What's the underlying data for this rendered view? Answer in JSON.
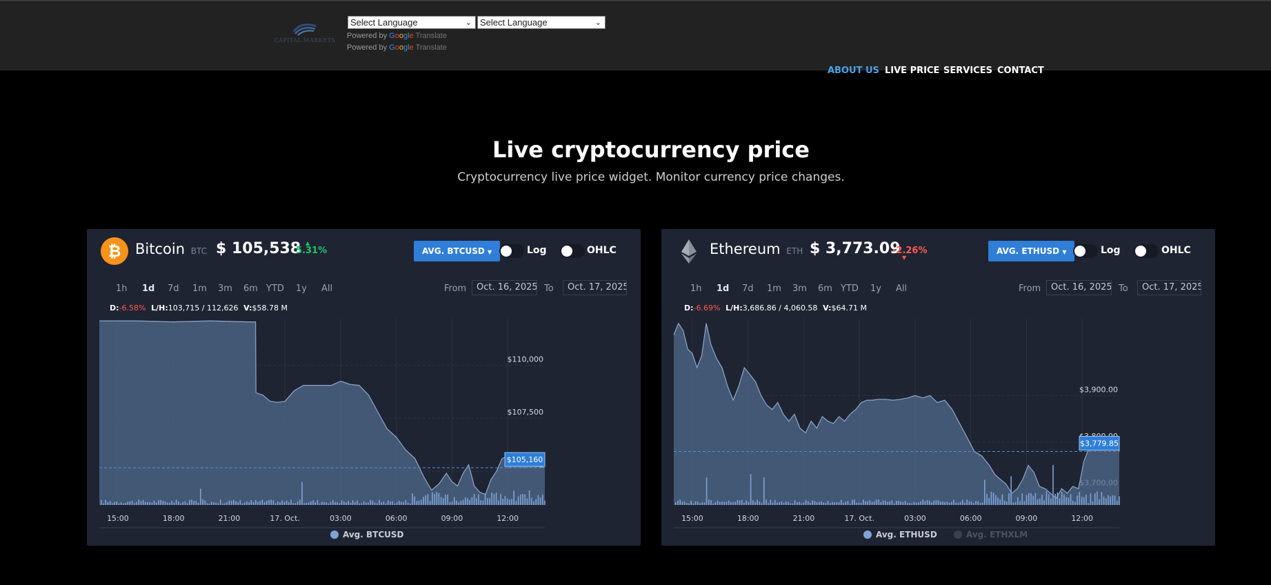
{
  "header": {
    "language_selects": [
      "Select Language",
      "Select Language"
    ],
    "powered_by": "Powered by",
    "powered_brand": [
      "G",
      "o",
      "o",
      "g",
      "l",
      "e"
    ],
    "powered_translate": "Translate",
    "logo_text": "CAPITAL MARKETS"
  },
  "nav": {
    "items": [
      {
        "label": "ABOUT US",
        "active": true
      },
      {
        "label": "LIVE PRICE",
        "active": false
      },
      {
        "label": "SERVICES",
        "active": false
      },
      {
        "label": "CONTACT",
        "active": false
      }
    ],
    "active_color": "#4aa3e8"
  },
  "hero": {
    "title": "Live cryptocurrency price",
    "subtitle": "Cryptocurrency live price widget. Monitor currency price changes."
  },
  "widgets": [
    {
      "name": "Bitcoin",
      "symbol": "BTC",
      "price": "$ 105,538",
      "change": "5.31%",
      "change_direction": "up",
      "avg_button": "AVG. BTCUSD",
      "toggles": [
        "Log",
        "OHLC"
      ],
      "ranges": [
        "1h",
        "1d",
        "7d",
        "1m",
        "3m",
        "6m",
        "YTD",
        "1y",
        "All"
      ],
      "active_range": "1d",
      "from_label": "From",
      "from_date": "Oct. 16, 2025",
      "to_label": "To",
      "to_date": "Oct. 17, 2025",
      "stats": {
        "d_label": "D:",
        "d_value": "-6.58%",
        "lh_label": "L/H:",
        "lh_value": "103,715 / 112,626",
        "v_label": "V:",
        "v_value": "$58.78 M"
      },
      "legend": [
        {
          "label": "Avg. BTCUSD",
          "enabled": true
        }
      ],
      "current_label": "$105,160"
    },
    {
      "name": "Ethereum",
      "symbol": "ETH",
      "price": "$ 3,773.09",
      "change": "-2.26%",
      "change_direction": "down",
      "avg_button": "AVG. ETHUSD",
      "toggles": [
        "Log",
        "OHLC"
      ],
      "ranges": [
        "1h",
        "1d",
        "7d",
        "1m",
        "3m",
        "6m",
        "YTD",
        "1y",
        "All"
      ],
      "active_range": "1d",
      "from_label": "From",
      "from_date": "Oct. 16, 2025",
      "to_label": "To",
      "to_date": "Oct. 17, 2025",
      "stats": {
        "d_label": "D:",
        "d_value": "-6.69%",
        "lh_label": "L/H:",
        "lh_value": "3,686.86 / 4,060.58",
        "v_label": "V:",
        "v_value": "$64.71 M"
      },
      "legend": [
        {
          "label": "Avg. ETHUSD",
          "enabled": true
        },
        {
          "label": "Avg. ETHXLM",
          "enabled": false
        }
      ],
      "current_label": "$3,779.85"
    }
  ],
  "chart_data": [
    {
      "type": "area",
      "title": "",
      "series": [
        {
          "name": "Avg. BTCUSD"
        }
      ],
      "x_ticks": [
        "15:00",
        "18:00",
        "21:00",
        "17. Oct.",
        "03:00",
        "06:00",
        "09:00",
        "12:00"
      ],
      "y_ticks": [
        105000,
        107500,
        110000
      ],
      "y_tick_labels": [
        "$105,000",
        "$107,500",
        "$110,000"
      ],
      "ylim": [
        103400,
        112200
      ],
      "current_value": 105160,
      "t": [
        0,
        2,
        4,
        6,
        8,
        8.42,
        8.44,
        8.8,
        9.2,
        9.6,
        10,
        10.5,
        11,
        11.5,
        12,
        12.5,
        13,
        13.5,
        14,
        14.5,
        15,
        15.5,
        16,
        16.5,
        17,
        17.5,
        17.9,
        18.3,
        18.7,
        19,
        19.3,
        19.6,
        19.9,
        20.2,
        20.5,
        20.8,
        21.1,
        21.4,
        21.7,
        22,
        22.3,
        22.6,
        22.9,
        23.2,
        23.5,
        23.8,
        24
      ],
      "values": [
        112100,
        112100,
        112050,
        112100,
        112050,
        112050,
        108700,
        108600,
        108300,
        108250,
        108300,
        108800,
        109050,
        109050,
        109050,
        109050,
        109250,
        109100,
        109050,
        108600,
        107800,
        107000,
        106600,
        106000,
        105600,
        104700,
        104100,
        104400,
        104900,
        104500,
        104300,
        104900,
        105300,
        104300,
        104000,
        103900,
        104600,
        105000,
        105600,
        105700,
        105800,
        105800,
        105500,
        105400,
        105250,
        105200,
        105160
      ]
    },
    {
      "type": "area",
      "title": "",
      "series": [
        {
          "name": "Avg. ETHUSD"
        },
        {
          "name": "Avg. ETHXLM"
        }
      ],
      "x_ticks": [
        "15:00",
        "18:00",
        "21:00",
        "17. Oct.",
        "03:00",
        "06:00",
        "09:00",
        "12:00"
      ],
      "y_ticks": [
        3700,
        3800,
        3900
      ],
      "y_tick_labels": [
        "$3,700.00",
        "$3,800.00",
        "$3,900.00"
      ],
      "ylim": [
        3665,
        4065
      ],
      "current_value": 3779.85,
      "t": [
        0,
        0.25,
        0.5,
        0.75,
        1,
        1.25,
        1.5,
        1.75,
        2,
        2.3,
        2.6,
        2.9,
        3.2,
        3.5,
        3.8,
        4.1,
        4.4,
        4.7,
        5,
        5.3,
        5.6,
        5.9,
        6.2,
        6.5,
        6.8,
        7.1,
        7.4,
        7.7,
        8,
        8.3,
        8.6,
        8.9,
        9.2,
        9.5,
        9.8,
        10.1,
        10.4,
        10.7,
        11,
        11.4,
        11.8,
        12.2,
        12.6,
        13,
        13.4,
        13.8,
        14.2,
        14.6,
        15,
        15.4,
        15.8,
        16.2,
        16.6,
        17,
        17.3,
        17.6,
        17.9,
        18.2,
        18.5,
        18.8,
        19.1,
        19.4,
        19.7,
        20,
        20.3,
        20.6,
        20.9,
        21.2,
        21.5,
        21.8,
        22.1,
        22.4,
        22.7,
        23,
        23.3,
        23.6,
        23.9,
        24
      ],
      "values": [
        4030,
        4055,
        4040,
        4000,
        3990,
        3960,
        3985,
        4055,
        4010,
        3980,
        3960,
        3920,
        3890,
        3920,
        3960,
        3945,
        3930,
        3900,
        3880,
        3870,
        3885,
        3860,
        3845,
        3860,
        3830,
        3820,
        3845,
        3830,
        3855,
        3845,
        3840,
        3855,
        3845,
        3860,
        3870,
        3885,
        3890,
        3890,
        3892,
        3892,
        3890,
        3892,
        3895,
        3900,
        3895,
        3900,
        3885,
        3890,
        3870,
        3840,
        3810,
        3780,
        3770,
        3750,
        3730,
        3720,
        3710,
        3690,
        3700,
        3720,
        3750,
        3735,
        3705,
        3700,
        3690,
        3680,
        3700,
        3690,
        3705,
        3700,
        3760,
        3790,
        3800,
        3790,
        3800,
        3795,
        3790,
        3779.85
      ]
    }
  ],
  "colors": {
    "card_bg": "#1f2433",
    "area_fill": "#50698c",
    "area_line": "#8fa8c8",
    "volume": "#7fa3d6",
    "accent_blue": "#2f7ed8",
    "positive": "#1ec46a",
    "negative": "#ff5a4e"
  }
}
